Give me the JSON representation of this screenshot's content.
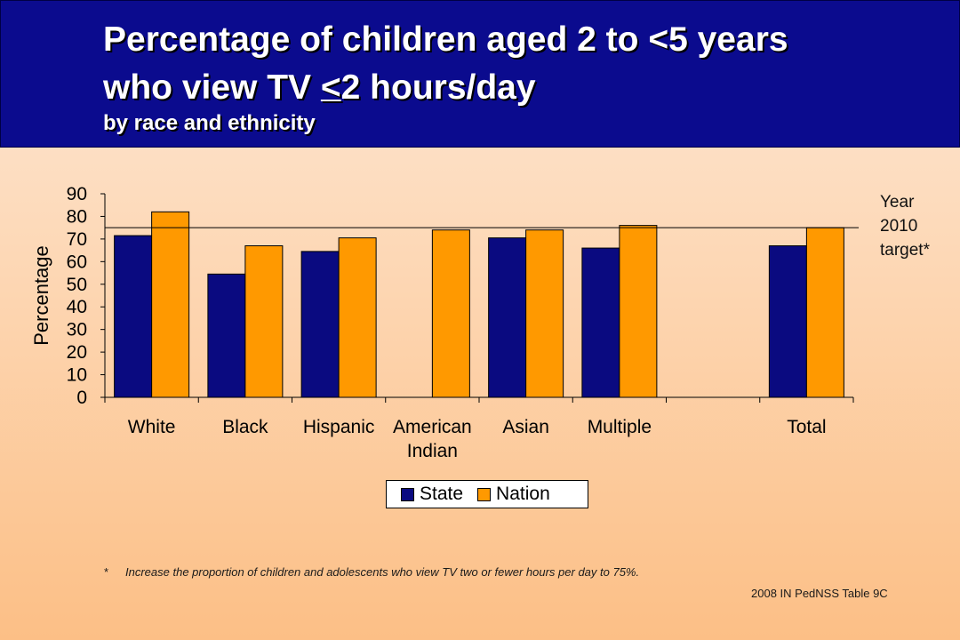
{
  "header": {
    "title_line1": "Percentage of children aged 2 to <5 years",
    "title_line2_pre": "who view TV ",
    "title_line2_u": "<",
    "title_line2_post": "2 hours/day",
    "subtitle": "by race and ethnicity"
  },
  "colors": {
    "header_bg": "#0b0b8e",
    "state": "#0a0a80",
    "nation": "#ff9900"
  },
  "chart_data": {
    "type": "bar",
    "categories": [
      "White",
      "Black",
      "Hispanic",
      "American Indian",
      "Asian",
      "Multiple",
      "",
      "Total"
    ],
    "category_lines": [
      [
        "White"
      ],
      [
        "Black"
      ],
      [
        "Hispanic"
      ],
      [
        "American",
        "Indian"
      ],
      [
        "Asian"
      ],
      [
        "Multiple"
      ],
      [
        ""
      ],
      [
        "Total"
      ]
    ],
    "series": [
      {
        "name": "State",
        "values": [
          71.5,
          54.5,
          64.5,
          null,
          70.5,
          66,
          null,
          67
        ]
      },
      {
        "name": "Nation",
        "values": [
          82,
          67,
          70.5,
          74,
          74,
          76,
          null,
          75
        ]
      }
    ],
    "ylabel": "Percentage",
    "ylim": [
      0,
      90
    ],
    "yticks": [
      0,
      10,
      20,
      30,
      40,
      50,
      60,
      70,
      80,
      90
    ],
    "target_value": 75,
    "legend_position": "bottom",
    "grid": false
  },
  "target_label": {
    "line1": "Year",
    "line2": "2010",
    "line3": "target*"
  },
  "legend": {
    "state_label": "State",
    "nation_label": "Nation"
  },
  "footnote": {
    "marker": "*",
    "text": "Increase the proportion of children and adolescents who view TV two or fewer hours per day to 75%."
  },
  "source": "2008 IN PedNSS Table 9C"
}
